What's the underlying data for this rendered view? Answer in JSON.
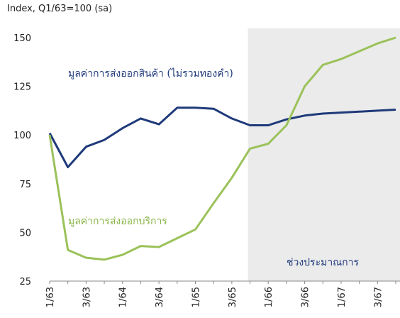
{
  "chart_data": {
    "type": "line",
    "title": "Index, Q1/63=100 (sa)",
    "categories": [
      "1/63",
      null,
      "3/63",
      null,
      "1/64",
      null,
      "3/64",
      null,
      "1/65",
      null,
      "3/65",
      null,
      "1/66",
      null,
      "3/66",
      null,
      "1/67",
      null,
      "3/67",
      null
    ],
    "series": [
      {
        "name": "มูลค่าการส่งออกสินค้า (ไม่รวมทองคำ)",
        "color": "#1f3a7a",
        "values": [
          101,
          83.5,
          94,
          97.5,
          103.5,
          108.5,
          105.5,
          114,
          114,
          113.5,
          108.5,
          105,
          105,
          108,
          110,
          111,
          111.5,
          112,
          112.5,
          113
        ]
      },
      {
        "name": "มูลค่าการส่งออกบริการ",
        "color": "#9bc25a",
        "values": [
          100,
          41,
          37,
          36,
          38.5,
          43,
          42.5,
          47,
          51.5,
          65,
          78,
          93,
          95.5,
          105,
          125,
          136,
          139,
          143,
          147,
          150
        ]
      }
    ],
    "forecast_region": {
      "label": "ช่วงประมาณการ",
      "start_index": 11
    },
    "ylim": [
      25,
      150
    ],
    "yticks": [
      25,
      50,
      75,
      100,
      125,
      150
    ],
    "grid": false
  }
}
